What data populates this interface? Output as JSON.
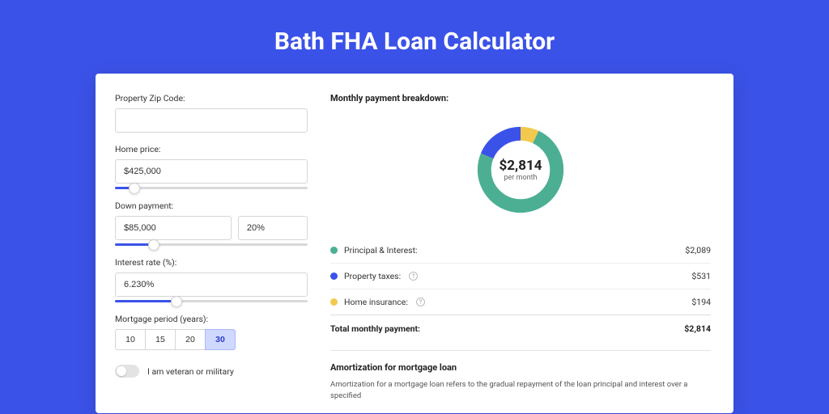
{
  "page_title": "Bath FHA Loan Calculator",
  "colors": {
    "page_bg": "#3b52e8",
    "card_bg": "#ffffff",
    "input_border": "#d6d6d6",
    "slider_track": "#d9d9d9",
    "slider_fill": "#3b52e8",
    "period_active_bg": "#cfd8ff"
  },
  "form": {
    "zip_label": "Property Zip Code:",
    "zip_value": "",
    "home_price_label": "Home price:",
    "home_price_value": "$425,000",
    "home_price_slider_pct": 10,
    "down_payment_label": "Down payment:",
    "down_payment_value": "$85,000",
    "down_payment_pct": "20%",
    "down_payment_slider_pct": 20,
    "interest_label": "Interest rate (%):",
    "interest_value": "6.230%",
    "interest_slider_pct": 32,
    "period_label": "Mortgage period (years):",
    "period_options": [
      "10",
      "15",
      "20",
      "30"
    ],
    "period_selected": "30",
    "veteran_label": "I am veteran or military",
    "veteran_on": false
  },
  "breakdown": {
    "title": "Monthly payment breakdown:",
    "chart": {
      "type": "donut",
      "center_value": "$2,814",
      "center_sub": "per month",
      "stroke_width": 17,
      "slices": [
        {
          "label": "Principal & Interest:",
          "value": "$2,089",
          "amount": 2089,
          "color": "#4caf93"
        },
        {
          "label": "Property taxes:",
          "value": "$531",
          "amount": 531,
          "color": "#3b52e8",
          "info": true
        },
        {
          "label": "Home insurance:",
          "value": "$194",
          "amount": 194,
          "color": "#f2c94c",
          "info": true
        }
      ],
      "total": 2814
    },
    "total_label": "Total monthly payment:",
    "total_value": "$2,814"
  },
  "amort": {
    "title": "Amortization for mortgage loan",
    "text": "Amortization for a mortgage loan refers to the gradual repayment of the loan principal and interest over a specified"
  }
}
